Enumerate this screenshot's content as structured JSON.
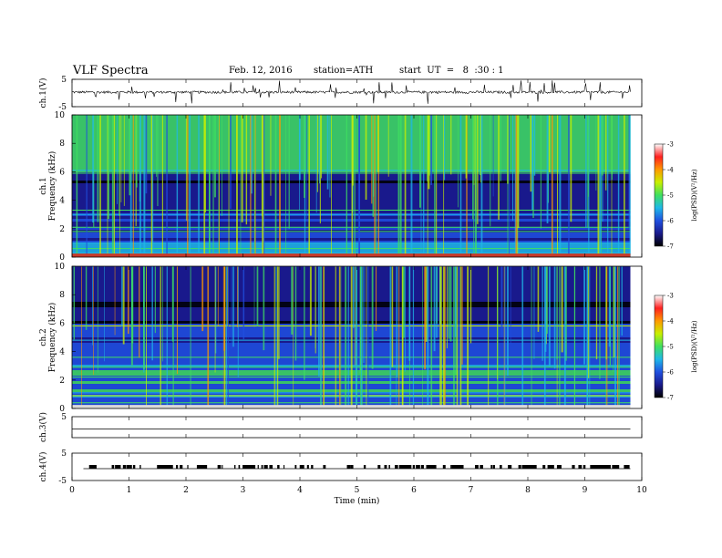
{
  "header": {
    "title": "VLF Spectra",
    "date": "Feb. 12, 2016",
    "station": "station=ATH",
    "start": "start  UT  =   8  :30 : 1"
  },
  "colors": {
    "spectrogram_stops": [
      "#000000",
      "#1a1a8c",
      "#2050e0",
      "#1fb8e8",
      "#3fe060",
      "#c8f000",
      "#ff9a00",
      "#ff2020",
      "#ffffff"
    ]
  },
  "chart_data": [
    {
      "type": "line",
      "name": "ch1-waveform",
      "ylabel": "ch.1(V)",
      "ylim": [
        -5,
        5
      ],
      "yticks": [
        "5",
        "-5"
      ],
      "xlim": [
        0,
        10
      ],
      "trace_end_min": 9.8
    },
    {
      "type": "heatmap",
      "name": "ch1-spectrogram",
      "ylabel_channel": "ch.1",
      "ylabel": "Frequency  (kHz)",
      "ylim": [
        0,
        10
      ],
      "yticks": [
        "0",
        "2",
        "4",
        "6",
        "8",
        "10"
      ],
      "xlim": [
        0,
        10
      ],
      "colorbar": {
        "label": "log(PSD)(V²/Hz)",
        "range": [
          -7,
          -3
        ],
        "ticks": [
          "-3",
          "-4",
          "-5",
          "-6",
          "-7"
        ]
      }
    },
    {
      "type": "heatmap",
      "name": "ch2-spectrogram",
      "ylabel_channel": "ch.2",
      "ylabel": "Frequency  (kHz)",
      "ylim": [
        0,
        10
      ],
      "yticks": [
        "0",
        "2",
        "4",
        "6",
        "8",
        "10"
      ],
      "xlim": [
        0,
        10
      ],
      "colorbar": {
        "label": "log(PSD)(V²/Hz)",
        "range": [
          -7,
          -3
        ],
        "ticks": [
          "-3",
          "-4",
          "-5",
          "-6",
          "-7"
        ]
      }
    },
    {
      "type": "line",
      "name": "ch3-waveform",
      "ylabel": "ch.3(V)",
      "ylim": [
        -5,
        5
      ],
      "yticks": [
        "5"
      ],
      "xlim": [
        0,
        10
      ]
    },
    {
      "type": "line",
      "name": "ch4-waveform",
      "ylabel": "ch.4(V)",
      "ylim": [
        -5,
        5
      ],
      "yticks": [
        "5",
        "-5"
      ],
      "xlim": [
        0,
        10
      ]
    }
  ],
  "xaxis": {
    "label": "Time  (min)",
    "ticks": [
      "0",
      "1",
      "2",
      "3",
      "4",
      "5",
      "6",
      "7",
      "8",
      "9",
      "10"
    ]
  }
}
